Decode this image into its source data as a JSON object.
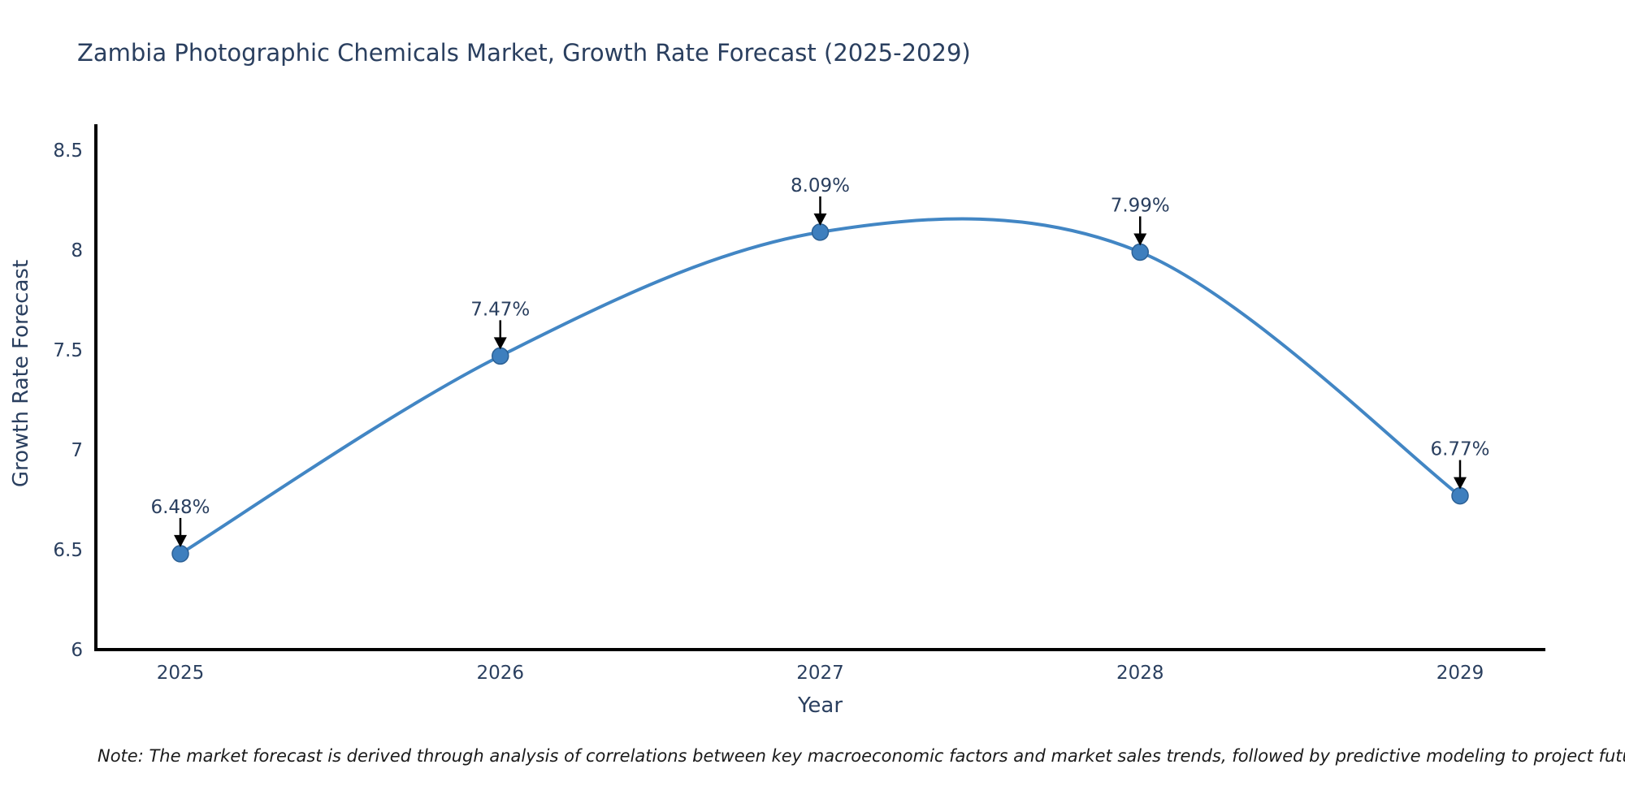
{
  "title": "Zambia Photographic Chemicals Market, Growth Rate Forecast (2025-2029)",
  "note": "Note: The market forecast is derived through analysis of correlations between key macroeconomic factors and market sales trends, followed by predictive modeling to project future sales",
  "chart_data": {
    "type": "line",
    "line_shape": "spline",
    "title": "Zambia Photographic Chemicals Market, Growth Rate Forecast (2025-2029)",
    "xlabel": "Year",
    "ylabel": "Growth Rate Forecast",
    "categories": [
      "2025",
      "2026",
      "2027",
      "2028",
      "2029"
    ],
    "series": [
      {
        "name": "Growth Rate Forecast",
        "values": [
          6.48,
          7.47,
          8.09,
          7.99,
          6.77
        ]
      }
    ],
    "point_labels": [
      "6.48%",
      "7.47%",
      "8.09%",
      "7.99%",
      "6.77%"
    ],
    "ylim": [
      6,
      8.5
    ],
    "yticks": [
      6,
      6.5,
      7,
      7.5,
      8,
      8.5
    ],
    "grid": false,
    "legend": false,
    "colors": {
      "line": "#4286c4",
      "marker_fill": "#3e7fbe",
      "marker_edge": "#2c6094",
      "axis": "#000000",
      "text": "#2a3f5f",
      "arrow": "#000000",
      "background": "#ffffff"
    }
  }
}
